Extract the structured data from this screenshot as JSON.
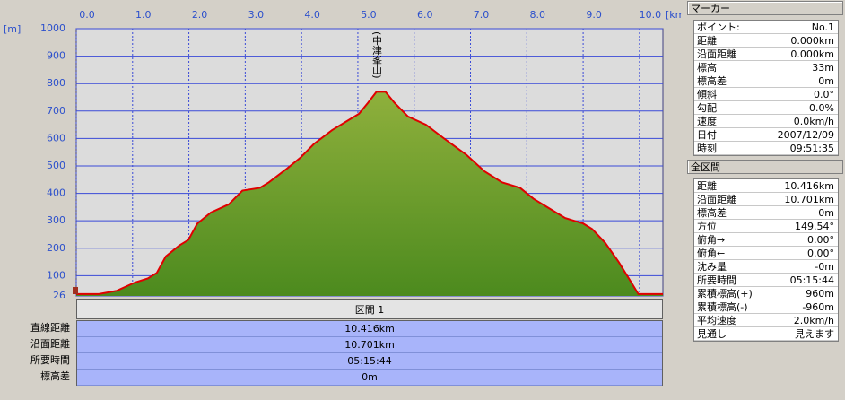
{
  "chart_data": {
    "type": "area",
    "x_unit": "[km]",
    "y_unit": "[m]",
    "xlim": [
      0,
      10.416
    ],
    "ylim": [
      26,
      1000
    ],
    "xticks": [
      {
        "value": 0,
        "label": "0.0"
      },
      {
        "value": 1,
        "label": "1.0"
      },
      {
        "value": 2,
        "label": "2.0"
      },
      {
        "value": 3,
        "label": "3.0"
      },
      {
        "value": 4,
        "label": "4.0"
      },
      {
        "value": 5,
        "label": "5.0"
      },
      {
        "value": 6,
        "label": "6.0"
      },
      {
        "value": 7,
        "label": "7.0"
      },
      {
        "value": 8,
        "label": "8.0"
      },
      {
        "value": 9,
        "label": "9.0"
      },
      {
        "value": 10,
        "label": "10.0"
      }
    ],
    "yticks": [
      26,
      100,
      200,
      300,
      400,
      500,
      600,
      700,
      800,
      900,
      1000
    ],
    "grid": true,
    "color": "#e00000",
    "fill_colors": [
      "#8fb03c",
      "#4c8a1e"
    ],
    "annotation": {
      "text": "(中津峯山)",
      "x": 5.4
    },
    "x": [
      0,
      0.4,
      0.72,
      1.04,
      1.27,
      1.43,
      1.59,
      1.83,
      1.99,
      2.15,
      2.39,
      2.71,
      2.95,
      3.26,
      3.42,
      3.74,
      3.98,
      4.22,
      4.54,
      4.78,
      5.02,
      5.18,
      5.33,
      5.49,
      5.65,
      5.89,
      6.21,
      6.53,
      6.93,
      7.25,
      7.56,
      7.88,
      8.12,
      8.36,
      8.68,
      9.0,
      9.16,
      9.39,
      9.63,
      9.87,
      9.98,
      10.416
    ],
    "values": [
      33,
      33,
      45,
      75,
      90,
      110,
      170,
      210,
      230,
      290,
      330,
      360,
      410,
      420,
      440,
      490,
      530,
      580,
      630,
      660,
      690,
      730,
      770,
      770,
      730,
      680,
      650,
      600,
      540,
      480,
      440,
      420,
      380,
      350,
      310,
      290,
      270,
      220,
      150,
      70,
      33,
      33
    ]
  },
  "section": {
    "title": "区間 1",
    "rows": [
      [
        "直線距離",
        "10.416km"
      ],
      [
        "沿面距離",
        "10.701km"
      ],
      [
        "所要時間",
        "05:15:44"
      ],
      [
        "標高差",
        "0m"
      ]
    ]
  },
  "marker_panel": {
    "title": "マーカー",
    "rows": [
      [
        "ポイント:",
        "No.1"
      ],
      [
        "距離",
        "0.000km"
      ],
      [
        "沿面距離",
        "0.000km"
      ],
      [
        "標高",
        "33m"
      ],
      [
        "標高差",
        "0m"
      ],
      [
        "傾斜",
        "0.0°"
      ],
      [
        "勾配",
        "0.0%"
      ],
      [
        "速度",
        "0.0km/h"
      ],
      [
        "日付",
        "2007/12/09"
      ],
      [
        "時刻",
        "09:51:35"
      ]
    ]
  },
  "total_panel": {
    "title": "全区間",
    "rows": [
      [
        "距離",
        "10.416km"
      ],
      [
        "沿面距離",
        "10.701km"
      ],
      [
        "標高差",
        "0m"
      ],
      [
        "方位",
        "149.54°"
      ],
      [
        "俯角→",
        "0.00°"
      ],
      [
        "俯角←",
        "0.00°"
      ],
      [
        "沈み量",
        "-0m"
      ],
      [
        "所要時間",
        "05:15:44"
      ],
      [
        "累積標高(+)",
        "960m"
      ],
      [
        "累積標高(-)",
        "-960m"
      ],
      [
        "平均速度",
        "2.0km/h"
      ],
      [
        "見通し",
        "見えます"
      ]
    ]
  }
}
